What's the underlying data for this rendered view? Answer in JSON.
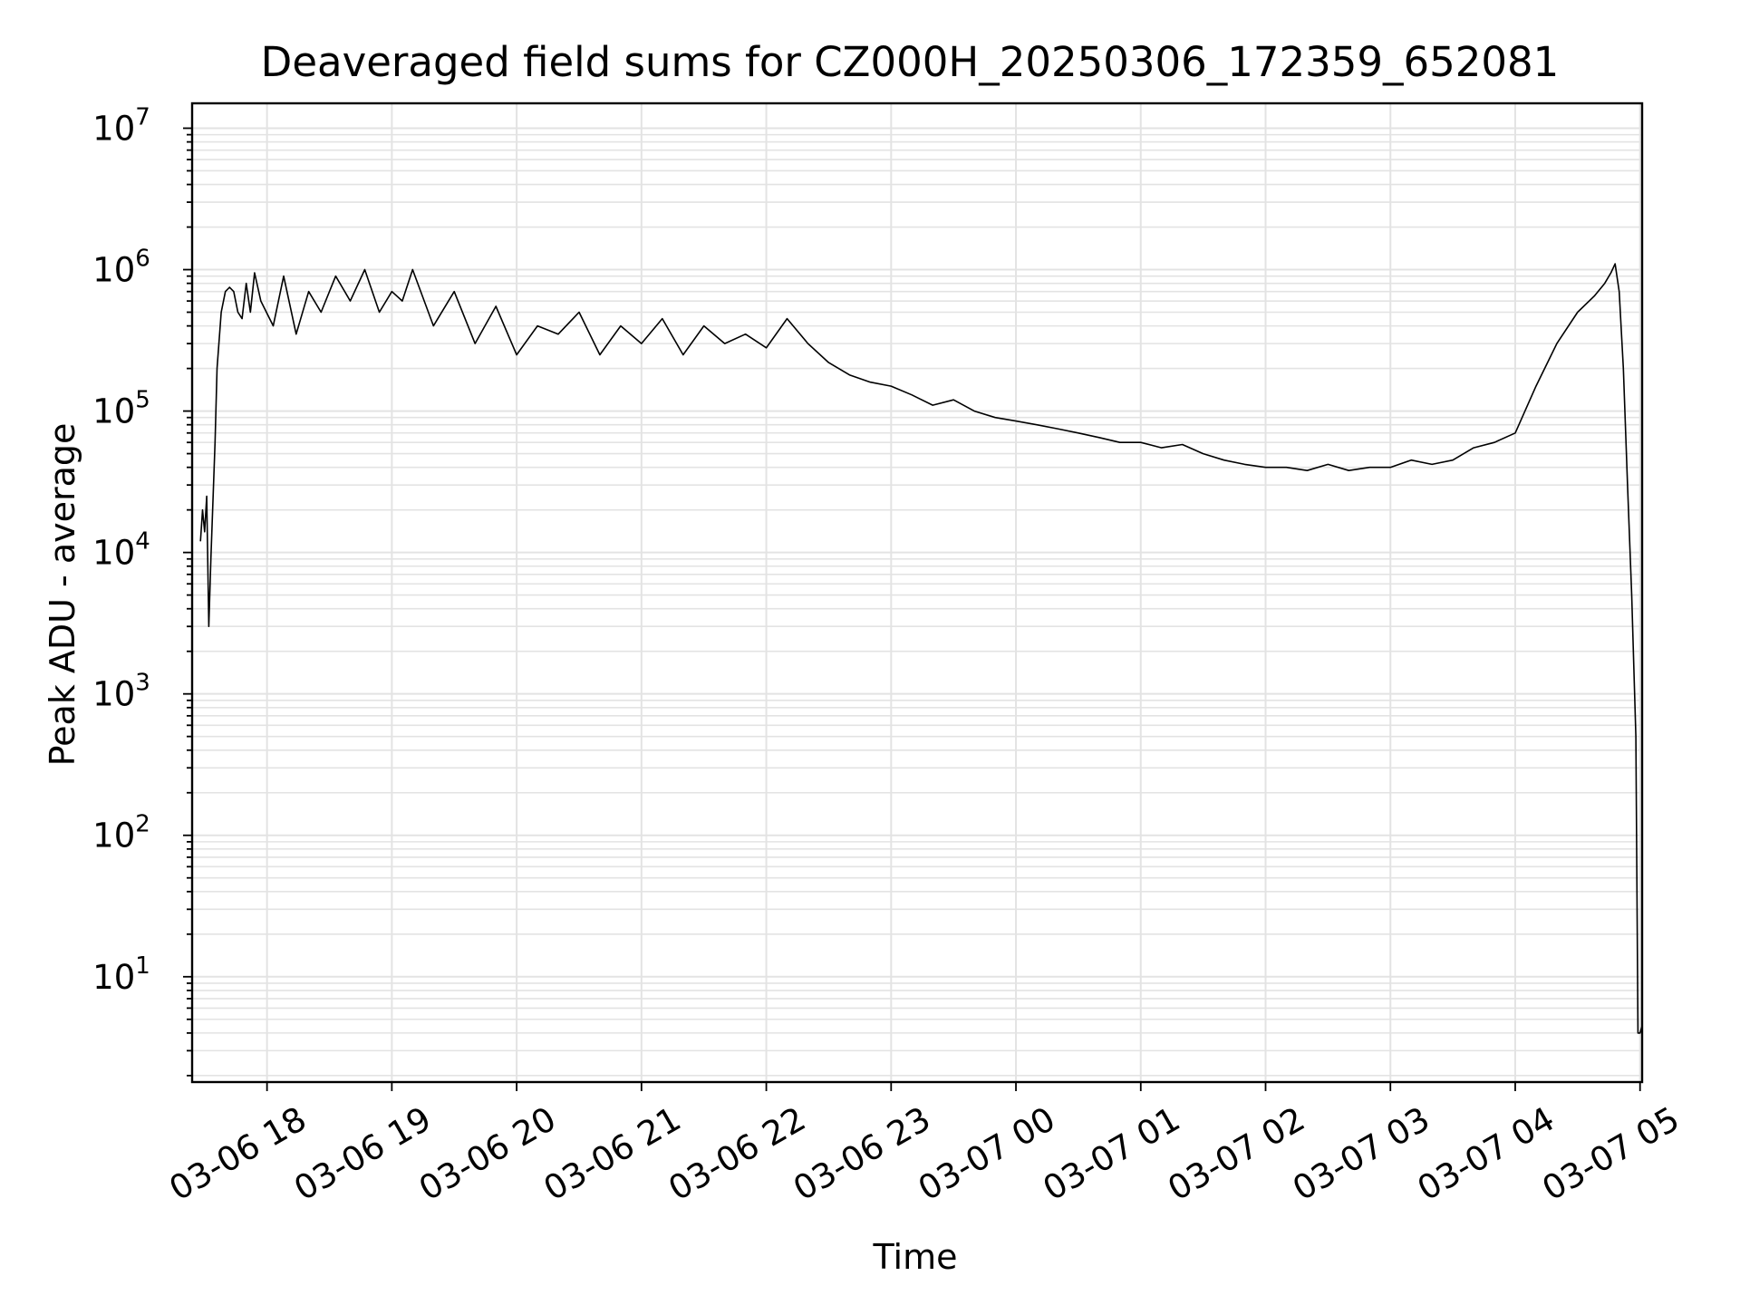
{
  "chart_data": {
    "type": "line",
    "title": "Deaveraged field sums for CZ000H_20250306_172359_652081",
    "xlabel": "Time",
    "ylabel": "Peak ADU - average",
    "yscale": "log",
    "ylim": [
      1.8,
      15000000
    ],
    "xlim": [
      "2025-03-06 17:24",
      "2025-03-07 05:01"
    ],
    "x_ticks": [
      "03-06 18",
      "03-06 19",
      "03-06 20",
      "03-06 21",
      "03-06 22",
      "03-06 23",
      "03-07 00",
      "03-07 01",
      "03-07 02",
      "03-07 03",
      "03-07 04",
      "03-07 05"
    ],
    "y_ticks": [
      {
        "base": "10",
        "exp": "1"
      },
      {
        "base": "10",
        "exp": "2"
      },
      {
        "base": "10",
        "exp": "3"
      },
      {
        "base": "10",
        "exp": "4"
      },
      {
        "base": "10",
        "exp": "5"
      },
      {
        "base": "10",
        "exp": "6"
      },
      {
        "base": "10",
        "exp": "7"
      }
    ],
    "grid": true,
    "line_color": "#000000",
    "grid_color": "#e3e3e3",
    "series": [
      {
        "x": [
          "2025-03-06 17:28",
          "2025-03-06 17:29",
          "2025-03-06 17:30",
          "2025-03-06 17:31",
          "2025-03-06 17:32",
          "2025-03-06 17:33",
          "2025-03-06 17:35",
          "2025-03-06 17:36",
          "2025-03-06 17:38",
          "2025-03-06 17:40",
          "2025-03-06 17:42",
          "2025-03-06 17:44",
          "2025-03-06 17:46",
          "2025-03-06 17:48",
          "2025-03-06 17:50",
          "2025-03-06 17:52",
          "2025-03-06 17:54",
          "2025-03-06 17:57",
          "2025-03-06 18:03",
          "2025-03-06 18:08",
          "2025-03-06 18:14",
          "2025-03-06 18:20",
          "2025-03-06 18:26",
          "2025-03-06 18:33",
          "2025-03-06 18:40",
          "2025-03-06 18:47",
          "2025-03-06 18:54",
          "2025-03-06 19:00",
          "2025-03-06 19:05",
          "2025-03-06 19:10",
          "2025-03-06 19:20",
          "2025-03-06 19:30",
          "2025-03-06 19:40",
          "2025-03-06 19:50",
          "2025-03-06 20:00",
          "2025-03-06 20:10",
          "2025-03-06 20:20",
          "2025-03-06 20:30",
          "2025-03-06 20:40",
          "2025-03-06 20:50",
          "2025-03-06 21:00",
          "2025-03-06 21:10",
          "2025-03-06 21:20",
          "2025-03-06 21:30",
          "2025-03-06 21:40",
          "2025-03-06 21:50",
          "2025-03-06 22:00",
          "2025-03-06 22:10",
          "2025-03-06 22:20",
          "2025-03-06 22:30",
          "2025-03-06 22:40",
          "2025-03-06 22:50",
          "2025-03-06 23:00",
          "2025-03-06 23:10",
          "2025-03-06 23:20",
          "2025-03-06 23:30",
          "2025-03-06 23:40",
          "2025-03-06 23:50",
          "2025-03-07 00:00",
          "2025-03-07 00:10",
          "2025-03-07 00:20",
          "2025-03-07 00:30",
          "2025-03-07 00:40",
          "2025-03-07 00:50",
          "2025-03-07 01:00",
          "2025-03-07 01:10",
          "2025-03-07 01:20",
          "2025-03-07 01:30",
          "2025-03-07 01:40",
          "2025-03-07 01:50",
          "2025-03-07 02:00",
          "2025-03-07 02:10",
          "2025-03-07 02:20",
          "2025-03-07 02:30",
          "2025-03-07 02:40",
          "2025-03-07 02:50",
          "2025-03-07 03:00",
          "2025-03-07 03:10",
          "2025-03-07 03:20",
          "2025-03-07 03:30",
          "2025-03-07 03:40",
          "2025-03-07 03:50",
          "2025-03-07 04:00",
          "2025-03-07 04:10",
          "2025-03-07 04:20",
          "2025-03-07 04:30",
          "2025-03-07 04:38",
          "2025-03-07 04:43",
          "2025-03-07 04:46",
          "2025-03-07 04:48",
          "2025-03-07 04:50",
          "2025-03-07 04:52",
          "2025-03-07 04:54",
          "2025-03-07 04:56",
          "2025-03-07 04:58",
          "2025-03-07 04:59",
          "2025-03-07 05:00",
          "2025-03-07 05:01"
        ],
        "y": [
          12000,
          20000,
          14000,
          25000,
          3000,
          9000,
          60000,
          200000,
          500000,
          700000,
          750000,
          700000,
          500000,
          450000,
          800000,
          500000,
          950000,
          600000,
          400000,
          900000,
          350000,
          700000,
          500000,
          900000,
          600000,
          1000000,
          500000,
          700000,
          600000,
          1000000,
          400000,
          700000,
          300000,
          550000,
          250000,
          400000,
          350000,
          500000,
          250000,
          400000,
          300000,
          450000,
          250000,
          400000,
          300000,
          350000,
          280000,
          450000,
          300000,
          220000,
          180000,
          160000,
          150000,
          130000,
          110000,
          120000,
          100000,
          90000,
          85000,
          80000,
          75000,
          70000,
          65000,
          60000,
          60000,
          55000,
          58000,
          50000,
          45000,
          42000,
          40000,
          40000,
          38000,
          42000,
          38000,
          40000,
          40000,
          45000,
          42000,
          45000,
          55000,
          60000,
          70000,
          150000,
          300000,
          500000,
          650000,
          800000,
          950000,
          1100000,
          700000,
          200000,
          30000,
          5000,
          500,
          4,
          4,
          4.5
        ]
      }
    ]
  }
}
